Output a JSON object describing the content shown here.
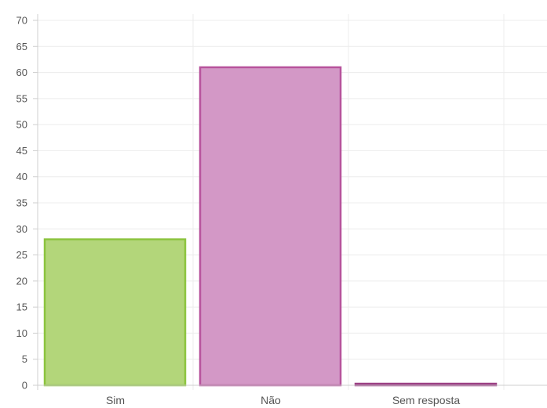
{
  "chart_data": {
    "type": "bar",
    "title": "",
    "xlabel": "",
    "ylabel": "",
    "categories": [
      "Sim",
      "Não",
      "Sem resposta"
    ],
    "values": [
      28,
      61,
      0
    ],
    "ylim": [
      0,
      70
    ],
    "ytick_step": 5,
    "ytick_labels": [
      "0",
      "5",
      "10",
      "15",
      "20",
      "25",
      "30",
      "35",
      "40",
      "45",
      "50",
      "55",
      "60",
      "65",
      "70"
    ],
    "grid": true,
    "legend": "none",
    "colors": [
      {
        "fill": "#b3d67a",
        "stroke": "#8cc43f"
      },
      {
        "fill": "#d398c6",
        "stroke": "#b7539c"
      },
      {
        "fill": "#d398c6",
        "stroke": "#9b3f84"
      }
    ]
  }
}
